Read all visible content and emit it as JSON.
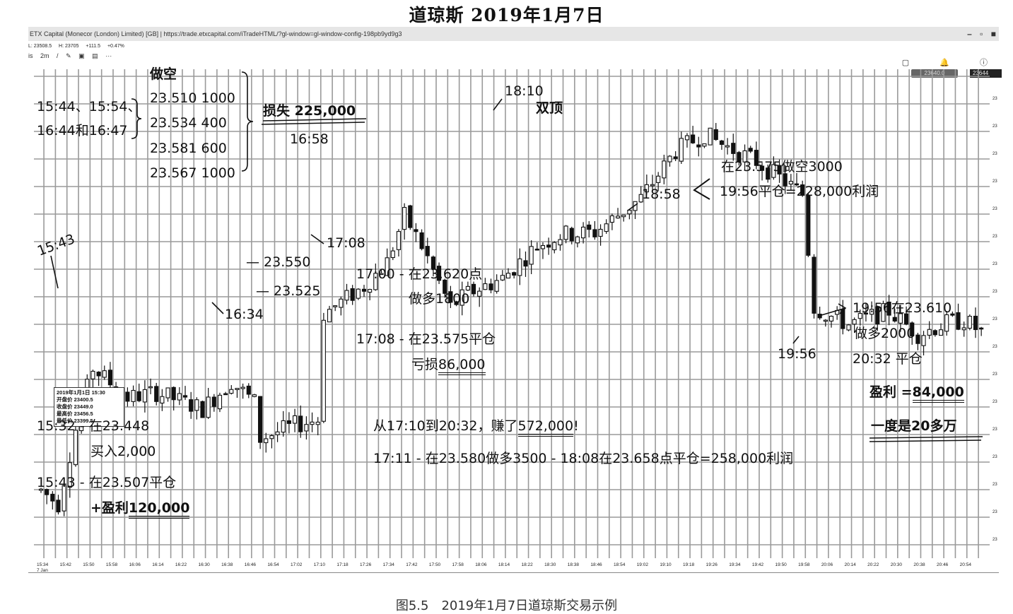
{
  "title": "道琼斯 2019年1月7日",
  "caption": "图5.5　2019年1月7日道琼斯交易示例",
  "window": {
    "title": "ETX Capital (Monecor (London) Limited) [GB]  |  https://trade.etxcapital.com/iTradeHTML/?gl-window=gl-window-config-198pb9yd9g3",
    "controls": [
      "–",
      "▫",
      "■"
    ]
  },
  "infobar": [
    "L: 23508.5",
    "H: 23705",
    "+111.5",
    "+0.47%"
  ],
  "toolbar": [
    "is",
    "2m",
    "/",
    "✎",
    "▣",
    "▤",
    "···"
  ],
  "toolbar_right": [
    "▢",
    "🔔",
    "ⓘ"
  ],
  "price_tags": [
    "23640.0",
    "4.0",
    "23644"
  ],
  "ohlc_box": {
    "date": "2019年1月1日 15:30",
    "open": "开盘价 23400.5",
    "close": "收盘价 23449.0",
    "high": "最高价 23456.5",
    "low": "最低价 23399.5"
  },
  "colors": {
    "bullish": "#ffffff",
    "bearish": "#111111",
    "grid": "#9a9a9a",
    "ink": "#111111"
  },
  "annotations": {
    "short_title": "做空",
    "short_times_1": "15:44、15:54、",
    "short_times_2": "16:44和16:47",
    "short_p1": "23.510 1000",
    "short_p2": "23.534 400",
    "short_p3": "23.581 600",
    "short_p4": "23.567 1000",
    "loss": "损失 225,000",
    "loss_time": "16:58",
    "t1810": "18:10",
    "double_top": "双顶",
    "short3000_1": "在23.575做空3000",
    "short3000_2": "19:56平仓=228,000利润",
    "t1858": "18:58",
    "t1543": "15:43",
    "t1708": "17:08",
    "l23550": "— 23.550",
    "l23525": "— 23.525",
    "t1634": "16:34",
    "long1800_1": "17:00 - 在23.620点",
    "long1800_2": "做多1800",
    "close1708_1": "17:08 - 在23.575平仓",
    "close1708_2": "亏损",
    "close1708_amt": "86,000",
    "t1956": "19:56",
    "long2000_1": "19:56在23.610",
    "long2000_2": "做多2000",
    "long2000_3": "20:32 平仓",
    "profit_label": "盈利 =",
    "profit_amt": "84,000",
    "peak_profit": "一度是20多万",
    "earn_pre": "从17:10到20:32，赚了",
    "earn_amt": "572,000",
    "earn_post": "!",
    "trade1711": "17:11 - 在23.580做多3500 - 18:08在23.658点平仓=258,000利润",
    "buy_1": "15:32 - 在23.448",
    "buy_2": "买入2,000",
    "close1543": "15:43 - 在23.507平仓",
    "profit1543_label": "+盈利",
    "profit1543_amt": "120,000"
  },
  "chart_data": {
    "type": "candlestick",
    "title": "道琼斯 2019年1月7日",
    "interval": "2m",
    "x_tick_labels": [
      "15:34\n7 Jan",
      "15:42",
      "15:50",
      "15:58",
      "16:06",
      "16:14",
      "16:22",
      "16:30",
      "16:38",
      "16:46",
      "16:54",
      "17:02",
      "17:10",
      "17:18",
      "17:26",
      "17:34",
      "17:42",
      "17:50",
      "17:58",
      "18:06",
      "18:14",
      "18:22",
      "18:30",
      "18:38",
      "18:46",
      "18:54",
      "19:02",
      "19:10",
      "19:18",
      "19:26",
      "19:34",
      "19:42",
      "19:50",
      "19:58",
      "20:06",
      "20:14",
      "20:22",
      "20:30",
      "20:38",
      "20:46",
      "20:54"
    ],
    "y_range": [
      23360,
      23720
    ],
    "path_knots": [
      [
        0,
        23410
      ],
      [
        3,
        23400
      ],
      [
        6,
        23455
      ],
      [
        9,
        23500
      ],
      [
        15,
        23478
      ],
      [
        20,
        23482
      ],
      [
        28,
        23470
      ],
      [
        33,
        23490
      ],
      [
        37,
        23475
      ],
      [
        38,
        23448
      ],
      [
        44,
        23458
      ],
      [
        48,
        23462
      ],
      [
        49,
        23540
      ],
      [
        56,
        23560
      ],
      [
        60,
        23578
      ],
      [
        63,
        23612
      ],
      [
        66,
        23590
      ],
      [
        71,
        23545
      ],
      [
        74,
        23555
      ],
      [
        80,
        23566
      ],
      [
        86,
        23590
      ],
      [
        90,
        23598
      ],
      [
        96,
        23600
      ],
      [
        104,
        23625
      ],
      [
        110,
        23660
      ],
      [
        115,
        23672
      ],
      [
        118,
        23665
      ],
      [
        124,
        23652
      ],
      [
        128,
        23640
      ],
      [
        132,
        23628
      ],
      [
        134,
        23545
      ],
      [
        136,
        23540
      ],
      [
        140,
        23532
      ],
      [
        144,
        23538
      ],
      [
        147,
        23542
      ],
      [
        152,
        23525
      ],
      [
        157,
        23533
      ],
      [
        160,
        23535
      ],
      [
        164,
        23524
      ],
      [
        168,
        23513
      ],
      [
        172,
        23500
      ],
      [
        176,
        23490
      ],
      [
        180,
        23475
      ],
      [
        183,
        23450
      ],
      [
        186,
        23458
      ],
      [
        190,
        23490
      ],
      [
        194,
        23506
      ],
      [
        198,
        23528
      ],
      [
        204,
        23540
      ],
      [
        210,
        23545
      ],
      [
        214,
        23545
      ],
      [
        217,
        23522
      ],
      [
        220,
        23525
      ],
      [
        224,
        23525
      ],
      [
        228,
        23514
      ],
      [
        232,
        23480
      ]
    ]
  }
}
